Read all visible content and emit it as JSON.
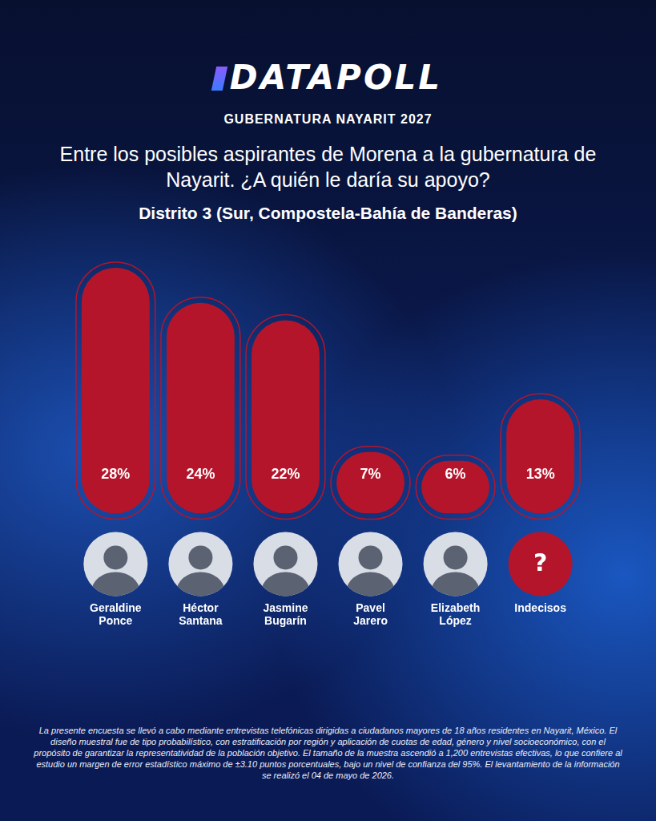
{
  "brand": "DATAPOLL",
  "header": "GUBERNATURA NAYARIT 2027",
  "chart_data": {
    "type": "bar",
    "title": "Entre los posibles aspirantes de Morena a la gubernatura de Nayarit. ¿A quién le daría su apoyo?",
    "subtitle": "Distrito 3 (Sur, Compostela-Bahía de Banderas)",
    "categories": [
      "Geraldine Ponce",
      "Héctor Santana",
      "Jasmine Bugarín",
      "Pavel Jarero",
      "Elizabeth López",
      "Indecisos"
    ],
    "values": [
      28,
      24,
      22,
      7,
      6,
      13
    ],
    "value_labels": [
      "28%",
      "24%",
      "22%",
      "7%",
      "6%",
      "13%"
    ],
    "color": "#b5152b",
    "ylim": [
      0,
      30
    ],
    "grid": false,
    "tick_labels": "x",
    "data_labels": true,
    "undecided": {
      "category": "Indecisos",
      "symbol": "?"
    }
  },
  "footnote": "La presente encuesta se llevó a cabo mediante entrevistas telefónicas dirigidas a ciudadanos mayores de 18 años residentes en Nayarit, México. El diseño muestral fue de tipo probabilístico, con estratificación por región y aplicación de cuotas de edad, género y nivel socioeconómico, con el propósito de garantizar la representatividad de la población objetivo. El tamaño de la muestra ascendió a 1,200 entrevistas efectivas, lo que confiere al estudio un margen de error estadístico máximo de ±3.10 puntos porcentuales, bajo un nivel de confianza del 95%. El levantamiento de la información se realizó el 04 de mayo de 2026."
}
